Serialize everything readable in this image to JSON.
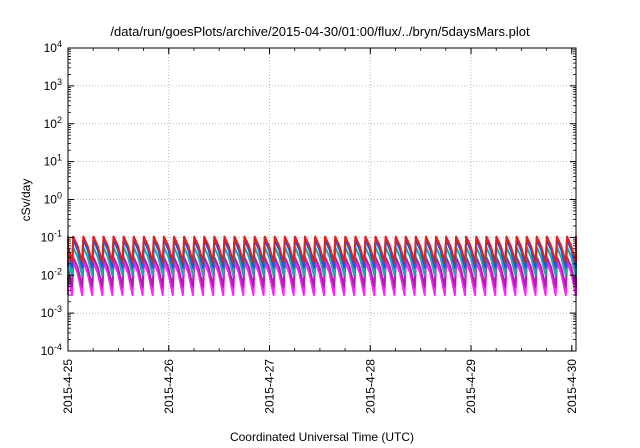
{
  "chart_data": {
    "type": "line",
    "title": "/data/run/goesPlots/archive/2015-04-30/01:00/flux/../bryn/5daysMars.plot",
    "xlabel": "Coordinated Universal Time (UTC)",
    "ylabel": "cSv/day",
    "y_scale": "log",
    "ylim": [
      0.0001,
      10000
    ],
    "y_ticks": [
      {
        "base": "10",
        "exp": "-4",
        "value": 0.0001
      },
      {
        "base": "10",
        "exp": "-3",
        "value": 0.001
      },
      {
        "base": "10",
        "exp": "-2",
        "value": 0.01
      },
      {
        "base": "10",
        "exp": "-1",
        "value": 0.1
      },
      {
        "base": "10",
        "exp": "0",
        "value": 1
      },
      {
        "base": "10",
        "exp": "1",
        "value": 10
      },
      {
        "base": "10",
        "exp": "2",
        "value": 100
      },
      {
        "base": "10",
        "exp": "3",
        "value": 1000
      },
      {
        "base": "10",
        "exp": "4",
        "value": 10000
      }
    ],
    "xlim": [
      "2015-04-25 00:00",
      "2015-04-30 01:00"
    ],
    "x_ticks": [
      "2015-4-25",
      "2015-4-26",
      "2015-4-27",
      "2015-4-28",
      "2015-4-29",
      "2015-4-30"
    ],
    "grid": true,
    "pulse_period_hours": 2.4,
    "series": [
      {
        "color": "#dd2222",
        "peak": 0.105,
        "trough": 0.022
      },
      {
        "color": "#2255dd",
        "peak": 0.085,
        "trough": 0.016
      },
      {
        "color": "#22aaaa",
        "peak": 0.055,
        "trough": 0.01
      },
      {
        "color": "#aa22aa",
        "peak": 0.03,
        "trough": 0.005
      },
      {
        "color": "#ff22ff",
        "peak": 0.022,
        "trough": 0.003
      }
    ]
  }
}
